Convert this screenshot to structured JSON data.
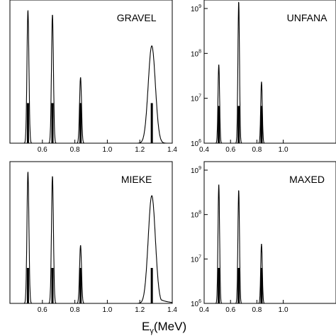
{
  "chart_data": [
    {
      "type": "line",
      "title": "GRAVEL",
      "xlim": [
        0.4,
        1.4
      ],
      "x_ticks": [
        "0.6",
        "0.8",
        "1.0",
        "1.2",
        "1.4"
      ],
      "y_ticks": [],
      "log_y": false,
      "grid": false,
      "peaks": [
        {
          "x": 0.511,
          "height": 0.93
        },
        {
          "x": 0.662,
          "height": 0.9
        },
        {
          "x": 0.835,
          "height": 0.46
        },
        {
          "x": 1.274,
          "height": 0.68
        }
      ],
      "reference_bars": [
        {
          "x": 0.511,
          "height": 0.28
        },
        {
          "x": 0.662,
          "height": 0.28
        },
        {
          "x": 0.835,
          "height": 0.28
        },
        {
          "x": 1.274,
          "height": 0.28
        }
      ]
    },
    {
      "type": "line",
      "title": "UNFANA",
      "xlim": [
        0.4,
        1.4
      ],
      "x_ticks": [
        "0.4",
        "0.6",
        "0.8",
        "1.0"
      ],
      "y_ticks": [
        "10^6",
        "10^7",
        "10^8",
        "10^9"
      ],
      "log_y": true,
      "grid": false,
      "peaks": [
        {
          "x": 0.511,
          "height": 0.55
        },
        {
          "x": 0.662,
          "height": 0.99
        },
        {
          "x": 0.835,
          "height": 0.43
        }
      ],
      "reference_bars": [
        {
          "x": 0.511,
          "height": 0.26
        },
        {
          "x": 0.662,
          "height": 0.26
        },
        {
          "x": 0.835,
          "height": 0.26
        }
      ]
    },
    {
      "type": "line",
      "title": "MIEKE",
      "xlim": [
        0.4,
        1.4
      ],
      "x_ticks": [
        "0.6",
        "0.8",
        "1.0",
        "1.2",
        "1.4"
      ],
      "y_ticks": [],
      "log_y": false,
      "grid": false,
      "peaks": [
        {
          "x": 0.511,
          "height": 0.93
        },
        {
          "x": 0.662,
          "height": 0.9
        },
        {
          "x": 0.835,
          "height": 0.41
        },
        {
          "x": 1.274,
          "height": 0.76
        }
      ],
      "reference_bars": [
        {
          "x": 0.511,
          "height": 0.25
        },
        {
          "x": 0.662,
          "height": 0.25
        },
        {
          "x": 0.835,
          "height": 0.25
        },
        {
          "x": 1.274,
          "height": 0.25
        }
      ]
    },
    {
      "type": "line",
      "title": "MAXED",
      "xlim": [
        0.4,
        1.4
      ],
      "x_ticks": [
        "0.4",
        "0.6",
        "0.8",
        "1.0"
      ],
      "y_ticks": [
        "10^6",
        "10^7",
        "10^8",
        "10^9"
      ],
      "log_y": true,
      "grid": false,
      "peaks": [
        {
          "x": 0.511,
          "height": 0.84
        },
        {
          "x": 0.662,
          "height": 0.8
        },
        {
          "x": 0.835,
          "height": 0.42
        }
      ],
      "reference_bars": [
        {
          "x": 0.511,
          "height": 0.25
        },
        {
          "x": 0.662,
          "height": 0.25
        },
        {
          "x": 0.835,
          "height": 0.25
        }
      ]
    }
  ],
  "axis_label": {
    "main": "E",
    "sub": "γ",
    "unit": "(MeV)"
  }
}
